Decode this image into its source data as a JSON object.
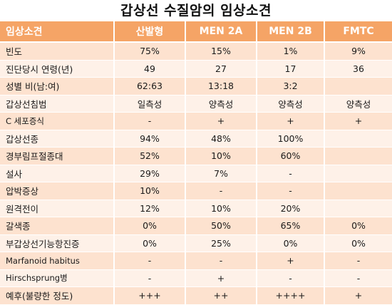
{
  "title": "갑상선 수질암의 임상소견",
  "headers": [
    "임상소견",
    "산발형",
    "MEN 2A",
    "MEN 2B",
    "FMTC"
  ],
  "rows": [
    {
      "label": "빈도",
      "values": [
        "75%",
        "15%",
        "1%",
        "9%"
      ]
    },
    {
      "label": "진단당시 연령(년)",
      "values": [
        "49",
        "27",
        "17",
        "36"
      ]
    },
    {
      "label": "성별 비(남:여)",
      "values": [
        "62:63",
        "13:18",
        "3:2",
        ""
      ]
    },
    {
      "label": "갑상선침범",
      "values": [
        "일측성",
        "양측성",
        "양측성",
        "양측성"
      ]
    },
    {
      "label": "C 세포증식",
      "values": [
        "-",
        "+",
        "+",
        "+"
      ]
    },
    {
      "label": "갑상선종",
      "values": [
        "94%",
        "48%",
        "100%",
        ""
      ]
    },
    {
      "label": "경부림프절종대",
      "values": [
        "52%",
        "10%",
        "60%",
        ""
      ]
    },
    {
      "label": "설사",
      "values": [
        "29%",
        "7%",
        "-",
        ""
      ]
    },
    {
      "label": "압박증상",
      "values": [
        "10%",
        "-",
        "-",
        ""
      ]
    },
    {
      "label": "원격전이",
      "values": [
        "12%",
        "10%",
        "20%",
        ""
      ]
    },
    {
      "label": "갈색종",
      "values": [
        "0%",
        "50%",
        "65%",
        "0%"
      ]
    },
    {
      "label": "부갑상선기능항진증",
      "values": [
        "0%",
        "25%",
        "0%",
        "0%"
      ]
    },
    {
      "label": "Marfanoid habitus",
      "values": [
        "-",
        "-",
        "+",
        "-"
      ]
    },
    {
      "label": "Hirschsprung병",
      "values": [
        "-",
        "+",
        "-",
        "-"
      ]
    },
    {
      "label": "예후(불량한 정도)",
      "values": [
        "+++",
        "++",
        "++++",
        "+"
      ]
    }
  ]
}
